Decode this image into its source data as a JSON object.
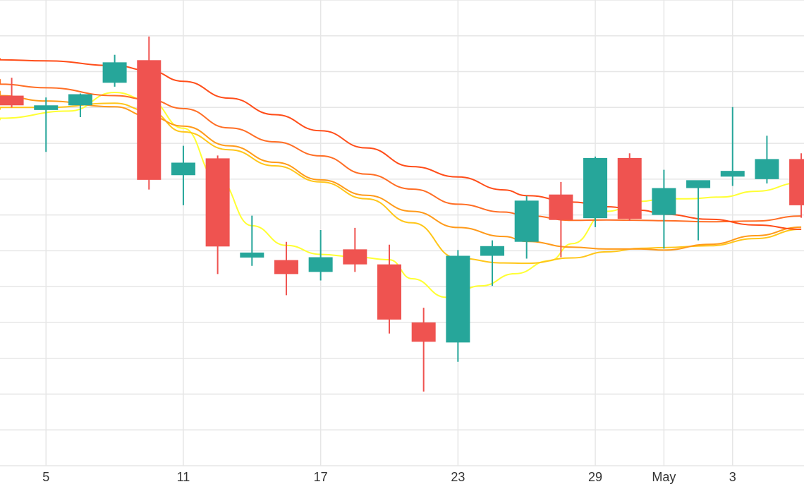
{
  "chart_data": {
    "type": "candlestick",
    "x_tick_labels": [
      "5",
      "11",
      "17",
      "23",
      "29",
      "May",
      "3"
    ],
    "ylim": [
      0,
      13
    ],
    "grid": true,
    "colors": {
      "up": "#26a69a",
      "down": "#ef5350",
      "grid": "#e6e6e6",
      "axis_text": "#333333"
    },
    "candles": [
      {
        "x": 3.5,
        "open": 10.33,
        "high": 10.83,
        "low": 10.0,
        "close": 10.06
      },
      {
        "x": 5,
        "open": 9.93,
        "high": 10.28,
        "low": 8.76,
        "close": 10.06
      },
      {
        "x": 6.5,
        "open": 10.06,
        "high": 10.39,
        "low": 9.73,
        "close": 10.37
      },
      {
        "x": 8,
        "open": 10.69,
        "high": 11.47,
        "low": 10.58,
        "close": 11.26
      },
      {
        "x": 9.5,
        "open": 11.32,
        "high": 11.98,
        "low": 7.71,
        "close": 7.98
      },
      {
        "x": 11,
        "open": 8.11,
        "high": 8.93,
        "low": 7.27,
        "close": 8.46
      },
      {
        "x": 12.5,
        "open": 8.58,
        "high": 8.66,
        "low": 5.35,
        "close": 6.12
      },
      {
        "x": 14,
        "open": 5.81,
        "high": 6.98,
        "low": 5.58,
        "close": 5.95
      },
      {
        "x": 15.5,
        "open": 5.74,
        "high": 6.25,
        "low": 4.76,
        "close": 5.35
      },
      {
        "x": 17,
        "open": 5.41,
        "high": 6.58,
        "low": 5.17,
        "close": 5.82
      },
      {
        "x": 18.5,
        "open": 6.04,
        "high": 6.64,
        "low": 5.41,
        "close": 5.62
      },
      {
        "x": 20,
        "open": 5.62,
        "high": 6.17,
        "low": 3.69,
        "close": 4.08
      },
      {
        "x": 21.5,
        "open": 4.0,
        "high": 4.41,
        "low": 2.07,
        "close": 3.46
      },
      {
        "x": 23,
        "open": 3.44,
        "high": 6.02,
        "low": 2.9,
        "close": 5.86
      },
      {
        "x": 24.5,
        "open": 5.86,
        "high": 6.29,
        "low": 5.02,
        "close": 6.13
      },
      {
        "x": 26,
        "open": 6.25,
        "high": 7.53,
        "low": 5.78,
        "close": 7.4
      },
      {
        "x": 27.5,
        "open": 7.57,
        "high": 7.92,
        "low": 5.82,
        "close": 6.86
      },
      {
        "x": 29,
        "open": 6.91,
        "high": 8.63,
        "low": 6.66,
        "close": 8.59
      },
      {
        "x": 30.5,
        "open": 8.59,
        "high": 8.72,
        "low": 6.84,
        "close": 6.89
      },
      {
        "x": 32,
        "open": 7.0,
        "high": 8.26,
        "low": 6.06,
        "close": 7.75
      },
      {
        "x": 33.5,
        "open": 7.75,
        "high": 7.96,
        "low": 6.29,
        "close": 7.97
      },
      {
        "x": 35,
        "open": 8.07,
        "high": 10.01,
        "low": 7.81,
        "close": 8.23
      },
      {
        "x": 36.5,
        "open": 8.0,
        "high": 9.21,
        "low": 7.88,
        "close": 8.56
      },
      {
        "x": 38,
        "open": 8.56,
        "high": 8.72,
        "low": 6.92,
        "close": 7.27
      }
    ],
    "moving_averages": [
      {
        "color": "#ffff33",
        "points": [
          [
            0,
            9.66
          ],
          [
            3,
            9.7
          ],
          [
            6,
            9.9
          ],
          [
            8,
            10.42
          ],
          [
            9.5,
            10.2
          ],
          [
            11,
            9.42
          ],
          [
            12.5,
            8.0
          ],
          [
            14,
            6.7
          ],
          [
            15.5,
            6.15
          ],
          [
            17,
            5.9
          ],
          [
            18.5,
            5.83
          ],
          [
            20,
            5.75
          ],
          [
            21,
            5.22
          ],
          [
            22.5,
            4.7
          ],
          [
            24,
            5.02
          ],
          [
            25.5,
            5.36
          ],
          [
            27,
            5.72
          ],
          [
            28,
            6.2
          ],
          [
            29.5,
            7.1
          ],
          [
            31,
            7.38
          ],
          [
            32,
            7.45
          ],
          [
            33,
            7.45
          ],
          [
            34.5,
            7.5
          ],
          [
            36,
            7.66
          ],
          [
            38,
            7.9
          ]
        ]
      },
      {
        "color": "#ffc61a",
        "points": [
          [
            0,
            9.95
          ],
          [
            3,
            10.0
          ],
          [
            5,
            10.0
          ],
          [
            8,
            10.12
          ],
          [
            9.5,
            9.9
          ],
          [
            11,
            9.32
          ],
          [
            13,
            8.82
          ],
          [
            15,
            8.37
          ],
          [
            17,
            7.92
          ],
          [
            19,
            7.45
          ],
          [
            21,
            6.78
          ],
          [
            23,
            5.79
          ],
          [
            25,
            5.66
          ],
          [
            26,
            5.65
          ],
          [
            28,
            5.8
          ],
          [
            29.5,
            5.97
          ],
          [
            31,
            6.07
          ],
          [
            32,
            6.09
          ],
          [
            34,
            6.14
          ],
          [
            36,
            6.34
          ],
          [
            38,
            6.6
          ]
        ]
      },
      {
        "color": "#ff9a1a",
        "points": [
          [
            0,
            10.45
          ],
          [
            3,
            10.33
          ],
          [
            5,
            10.18
          ],
          [
            8,
            10.02
          ],
          [
            9.5,
            9.75
          ],
          [
            11,
            9.48
          ],
          [
            13,
            8.93
          ],
          [
            15,
            8.47
          ],
          [
            17,
            7.98
          ],
          [
            19,
            7.55
          ],
          [
            21,
            7.1
          ],
          [
            23,
            6.65
          ],
          [
            25,
            6.4
          ],
          [
            26,
            6.26
          ],
          [
            28,
            6.1
          ],
          [
            29.5,
            6.05
          ],
          [
            31,
            6.05
          ],
          [
            32,
            6.02
          ],
          [
            34,
            6.18
          ],
          [
            36,
            6.42
          ],
          [
            38,
            6.66
          ]
        ]
      },
      {
        "color": "#ff6e25",
        "points": [
          [
            0,
            10.78
          ],
          [
            3,
            10.65
          ],
          [
            5,
            10.55
          ],
          [
            8,
            10.33
          ],
          [
            9.5,
            10.22
          ],
          [
            11,
            9.97
          ],
          [
            13,
            9.43
          ],
          [
            15,
            9.04
          ],
          [
            17,
            8.65
          ],
          [
            19,
            8.14
          ],
          [
            21,
            7.72
          ],
          [
            23,
            7.3
          ],
          [
            25,
            7.08
          ],
          [
            26,
            6.98
          ],
          [
            28,
            6.85
          ],
          [
            29.5,
            6.86
          ],
          [
            31,
            6.85
          ],
          [
            32,
            6.84
          ],
          [
            34,
            6.81
          ],
          [
            36,
            6.83
          ],
          [
            38,
            6.97
          ]
        ]
      },
      {
        "color": "#ff4d19",
        "points": [
          [
            0,
            11.36
          ],
          [
            3,
            11.33
          ],
          [
            5,
            11.3
          ],
          [
            8,
            11.17
          ],
          [
            9.5,
            11.03
          ],
          [
            11,
            10.73
          ],
          [
            13,
            10.26
          ],
          [
            15,
            9.8
          ],
          [
            17,
            9.35
          ],
          [
            19,
            8.87
          ],
          [
            21,
            8.35
          ],
          [
            23,
            8.06
          ],
          [
            25,
            7.7
          ],
          [
            26,
            7.54
          ],
          [
            28,
            7.36
          ],
          [
            29.5,
            7.23
          ],
          [
            31,
            7.13
          ],
          [
            32,
            7.02
          ],
          [
            34,
            6.88
          ],
          [
            36,
            6.72
          ],
          [
            38,
            6.6
          ]
        ]
      }
    ]
  }
}
